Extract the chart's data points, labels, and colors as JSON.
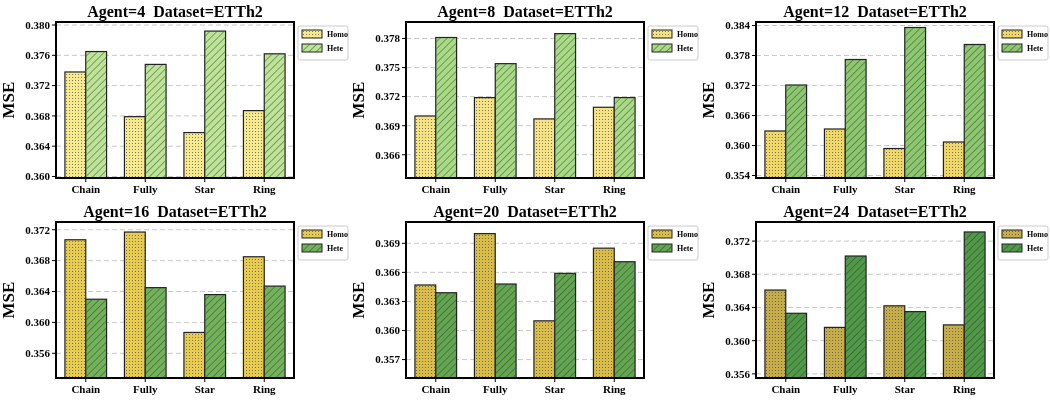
{
  "chart_data": [
    {
      "type": "bar",
      "title": "Agent=4  Dataset=ETTh2",
      "ylabel": "MSE",
      "categories": [
        "Chain",
        "Fully",
        "Star",
        "Ring"
      ],
      "series": [
        {
          "name": "Homo",
          "color": "#f7e98e",
          "values": [
            0.3738,
            0.3679,
            0.3658,
            0.3687
          ]
        },
        {
          "name": "Hete",
          "color": "#bde596",
          "values": [
            0.3765,
            0.3748,
            0.3792,
            0.3762
          ]
        }
      ],
      "ylim": [
        0.3598,
        0.3804
      ],
      "yticks": [
        {
          "value": 0.36,
          "label": "0.360"
        },
        {
          "value": 0.364,
          "label": "0.364"
        },
        {
          "value": 0.368,
          "label": "0.368"
        },
        {
          "value": 0.372,
          "label": "0.372"
        },
        {
          "value": 0.376,
          "label": "0.376"
        },
        {
          "value": 0.38,
          "label": "0.380"
        }
      ],
      "grid": "y",
      "legend": "top right"
    },
    {
      "type": "bar",
      "title": "Agent=8  Dataset=ETTh2",
      "ylabel": "MSE",
      "categories": [
        "Chain",
        "Fully",
        "Star",
        "Ring"
      ],
      "series": [
        {
          "name": "Homo",
          "color": "#f5e283",
          "values": [
            0.37,
            0.3719,
            0.3697,
            0.3709
          ]
        },
        {
          "name": "Hete",
          "color": "#a8dc84",
          "values": [
            0.3781,
            0.3754,
            0.3785,
            0.3719
          ]
        }
      ],
      "ylim": [
        0.3636,
        0.3797
      ],
      "yticks": [
        0.366,
        0.369,
        0.372,
        0.375,
        0.378
      ],
      "grid": "y",
      "legend": "top right"
    },
    {
      "type": "bar",
      "title": "Agent=12  Dataset=ETTh2",
      "ylabel": "MSE",
      "categories": [
        "Chain",
        "Fully",
        "Star",
        "Ring"
      ],
      "series": [
        {
          "name": "Homo",
          "color": "#f0d868",
          "values": [
            0.3629,
            0.3633,
            0.3594,
            0.3607
          ]
        },
        {
          "name": "Hete",
          "color": "#8cc86e",
          "values": [
            0.3721,
            0.3772,
            0.3836,
            0.3802
          ]
        }
      ],
      "ylim": [
        0.3535,
        0.3847
      ],
      "yticks": [
        0.354,
        {
          "value": 0.36,
          "label": "0.360"
        },
        0.366,
        0.372,
        0.378,
        0.384
      ],
      "grid": "y",
      "legend": "top right"
    },
    {
      "type": "bar",
      "title": "Agent=16  Dataset=ETTh2",
      "ylabel": "MSE",
      "categories": [
        "Chain",
        "Fully",
        "Star",
        "Ring"
      ],
      "series": [
        {
          "name": "Homo",
          "color": "#e8cc50",
          "values": [
            0.3707,
            0.3717,
            0.3587,
            0.3685
          ]
        },
        {
          "name": "Hete",
          "color": "#72b35a",
          "values": [
            0.363,
            0.3645,
            0.3636,
            0.3647
          ]
        }
      ],
      "ylim": [
        0.3528,
        0.373
      ],
      "yticks": [
        0.356,
        {
          "value": 0.36,
          "label": "0.360"
        },
        0.364,
        0.368,
        0.372
      ],
      "grid": "y",
      "legend": "top right"
    },
    {
      "type": "bar",
      "title": "Agent=20  Dataset=ETTh2",
      "ylabel": "MSE",
      "categories": [
        "Chain",
        "Fully",
        "Star",
        "Ring"
      ],
      "series": [
        {
          "name": "Homo",
          "color": "#d9bd48",
          "values": [
            0.3647,
            0.37,
            0.361,
            0.3685
          ]
        },
        {
          "name": "Hete",
          "color": "#62a650",
          "values": [
            0.3639,
            0.3648,
            0.3659,
            0.3671
          ]
        }
      ],
      "ylim": [
        0.3551,
        0.3712
      ],
      "yticks": [
        0.357,
        {
          "value": 0.36,
          "label": "0.360"
        },
        0.363,
        0.366,
        0.369
      ],
      "grid": "y",
      "legend": "top right"
    },
    {
      "type": "bar",
      "title": "Agent=24  Dataset=ETTh2",
      "ylabel": "MSE",
      "categories": [
        "Chain",
        "Fully",
        "Star",
        "Ring"
      ],
      "series": [
        {
          "name": "Homo",
          "color": "#c6ad48",
          "values": [
            0.3661,
            0.3616,
            0.3642,
            0.3619
          ]
        },
        {
          "name": "Hete",
          "color": "#4e9a46",
          "values": [
            0.3633,
            0.3702,
            0.3635,
            0.3731
          ]
        }
      ],
      "ylim": [
        0.3555,
        0.3743
      ],
      "yticks": [
        0.356,
        {
          "value": 0.36,
          "label": "0.360"
        },
        0.364,
        0.368,
        0.372
      ],
      "grid": "y",
      "legend": "top right"
    }
  ]
}
